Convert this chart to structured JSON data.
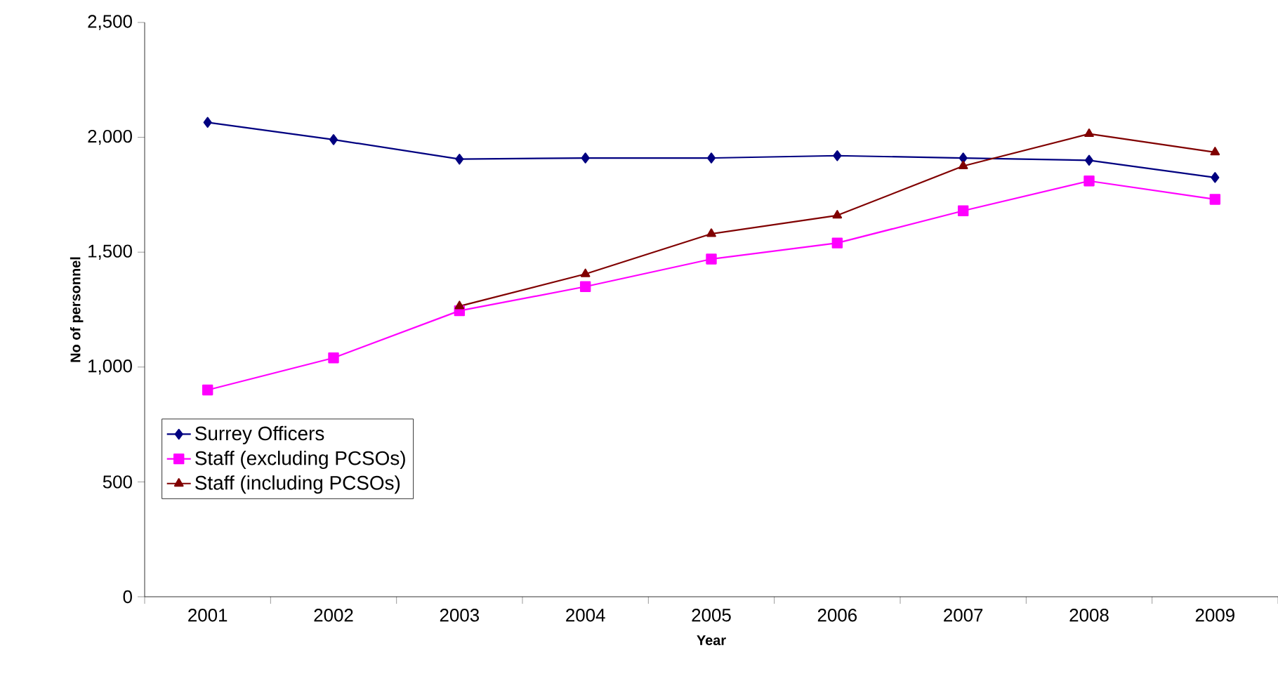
{
  "chart_data": {
    "type": "line",
    "xlabel": "Year",
    "ylabel": "No of personnel",
    "categories": [
      "2001",
      "2002",
      "2003",
      "2004",
      "2005",
      "2006",
      "2007",
      "2008",
      "2009"
    ],
    "series": [
      {
        "name": "Surrey Officers",
        "color": "#000080",
        "marker": "diamond",
        "values": [
          2065,
          1990,
          1905,
          1910,
          1910,
          1920,
          1910,
          1900,
          1825
        ]
      },
      {
        "name": "Staff (excluding PCSOs)",
        "color": "#ff00ff",
        "marker": "square",
        "values": [
          900,
          1040,
          1245,
          1350,
          1470,
          1540,
          1680,
          1810,
          1730
        ]
      },
      {
        "name": "Staff (including PCSOs)",
        "color": "#800000",
        "marker": "triangle",
        "values": [
          null,
          null,
          1265,
          1405,
          1580,
          1660,
          1875,
          2015,
          1935
        ]
      }
    ],
    "ylim": [
      0,
      2500
    ],
    "yticks": [
      0,
      500,
      {
        "value": 1000,
        "label": "1,000"
      },
      {
        "value": 1500,
        "label": "1,500"
      },
      {
        "value": 2000,
        "label": "2,000"
      },
      {
        "value": 2500,
        "label": "2,500"
      }
    ],
    "grid": false,
    "legend": "left",
    "line_style": "solid"
  }
}
